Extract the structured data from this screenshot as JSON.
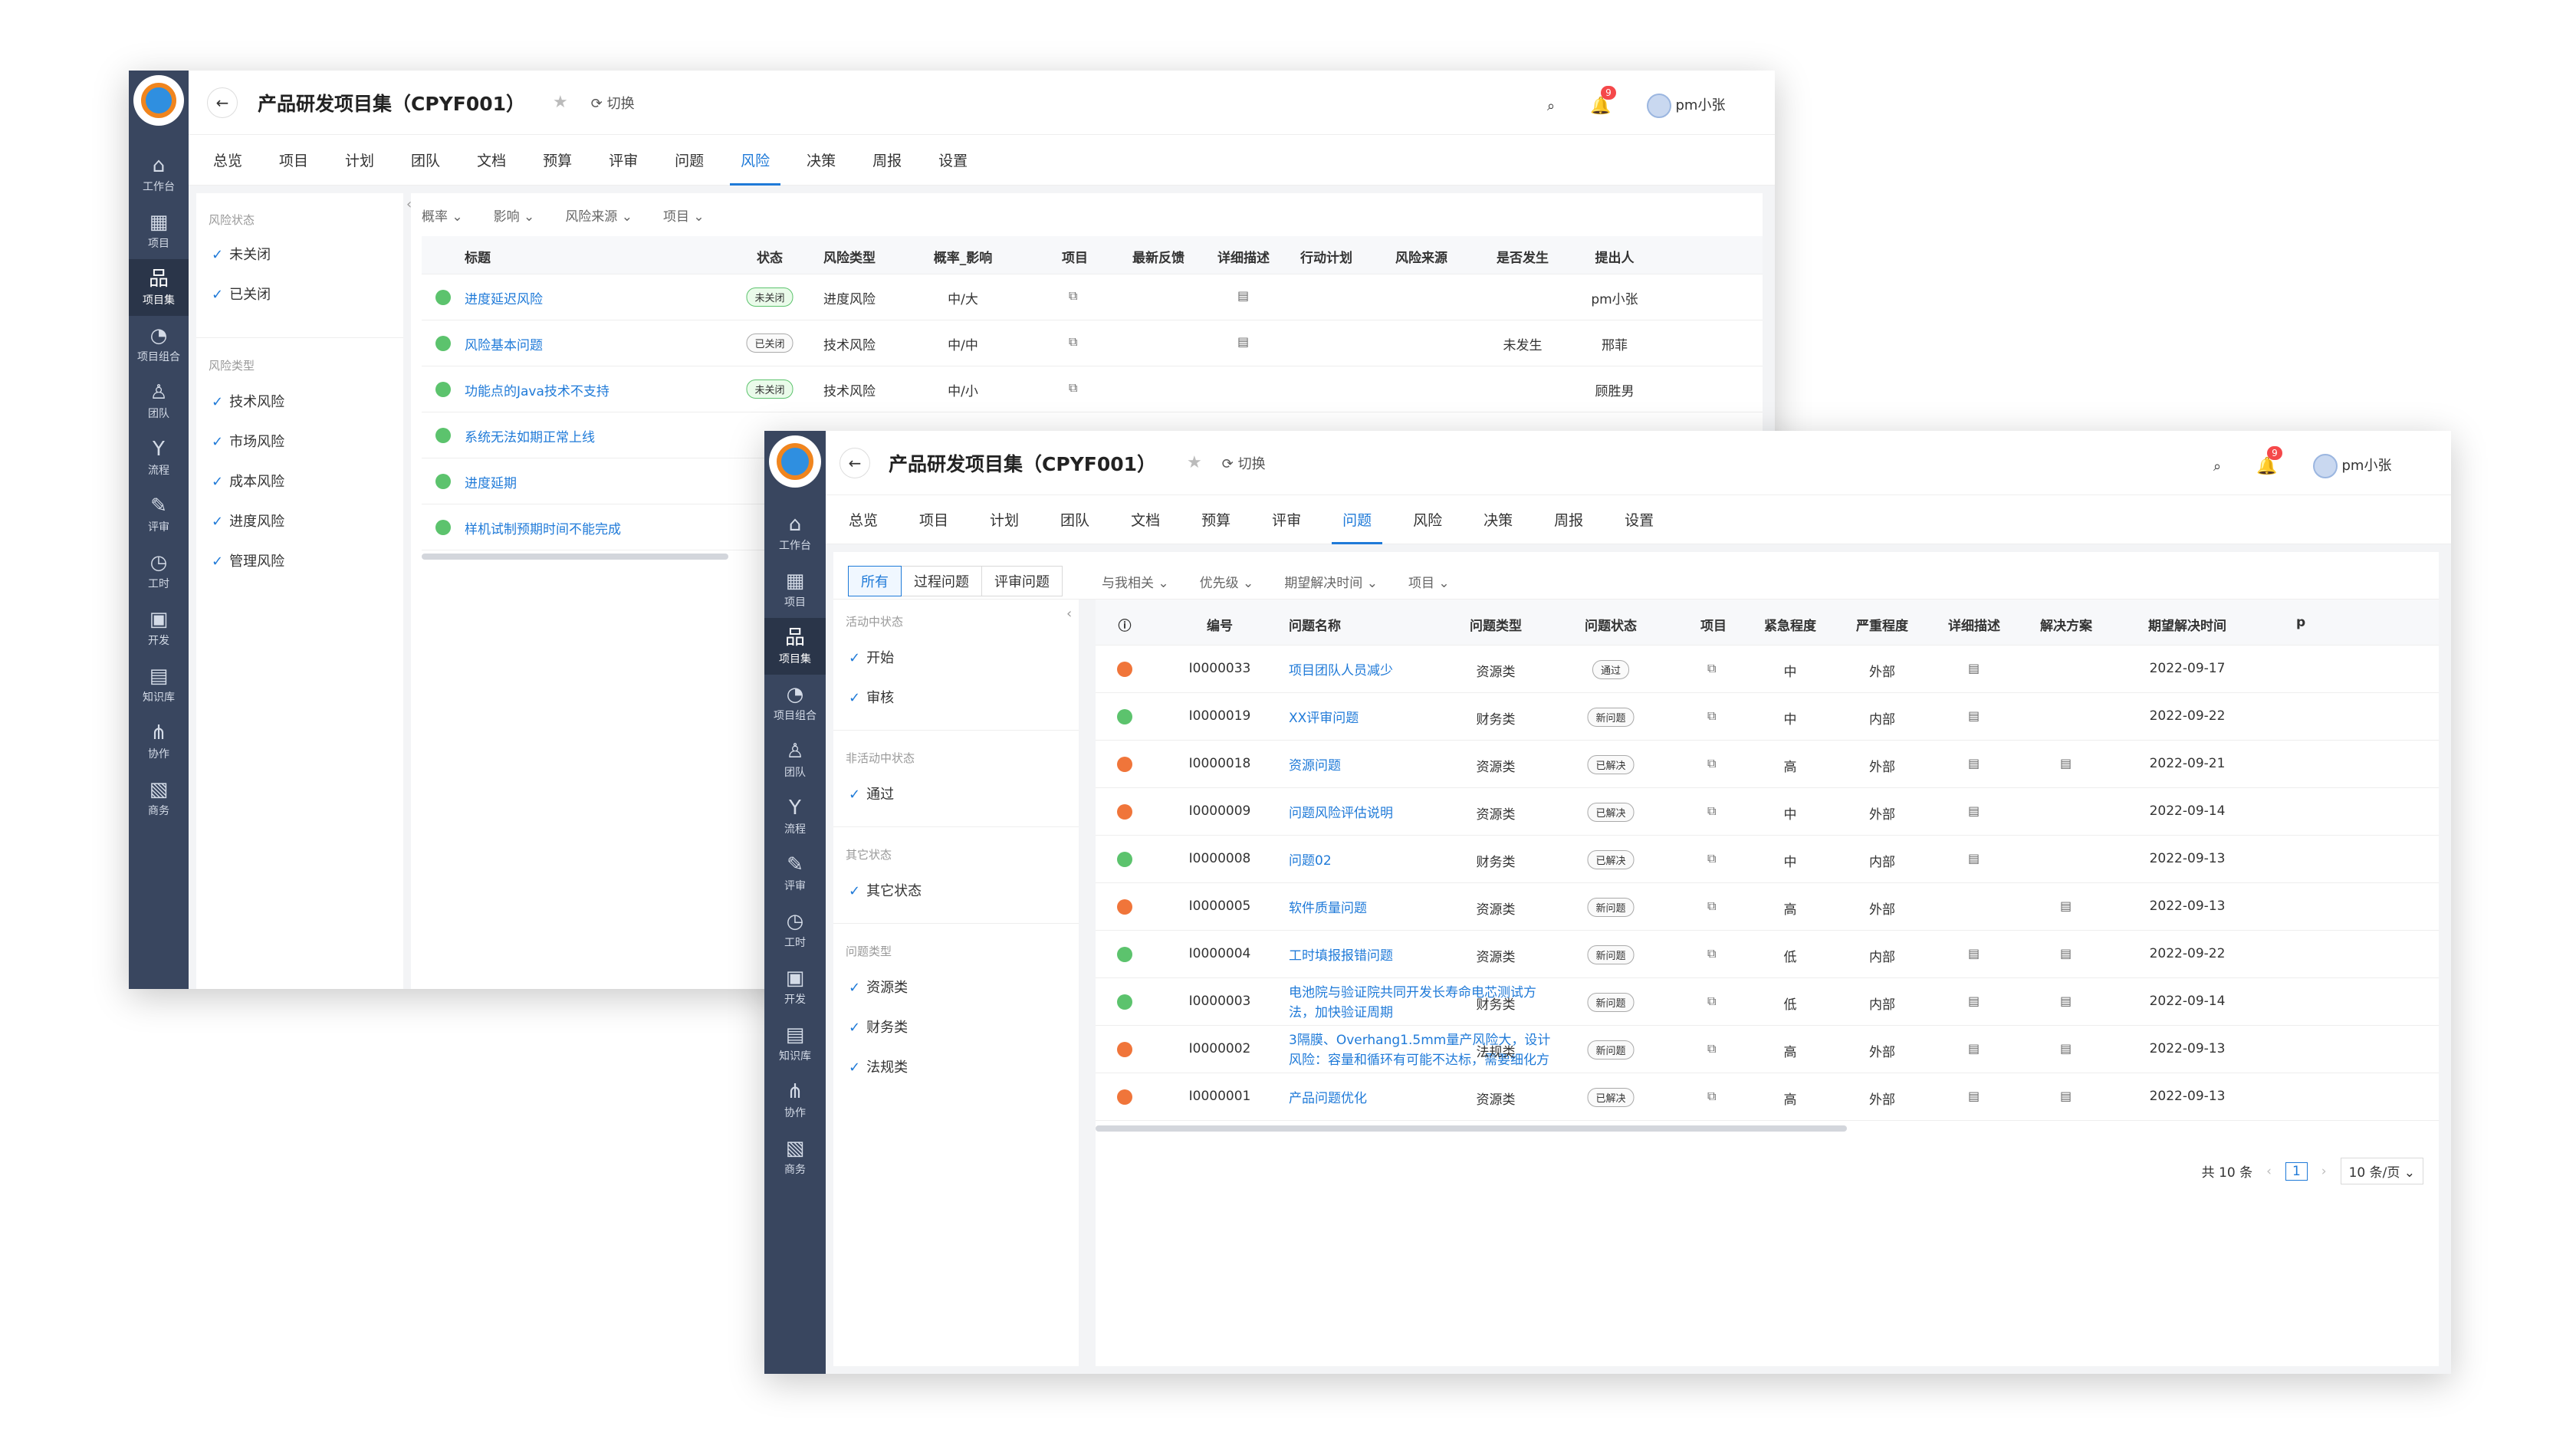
{
  "nav": [
    {
      "icon": "home-icon",
      "glyph": "⌂",
      "label": "工作台"
    },
    {
      "icon": "project-icon",
      "glyph": "▦",
      "label": "项目"
    },
    {
      "icon": "program-icon",
      "glyph": "品",
      "label": "项目集"
    },
    {
      "icon": "portfolio-icon",
      "glyph": "◔",
      "label": "项目组合"
    },
    {
      "icon": "team-icon",
      "glyph": "♙",
      "label": "团队"
    },
    {
      "icon": "flow-icon",
      "glyph": "Y",
      "label": "流程"
    },
    {
      "icon": "review-icon",
      "glyph": "✎",
      "label": "评审"
    },
    {
      "icon": "worktime-icon",
      "glyph": "◷",
      "label": "工时"
    },
    {
      "icon": "dev-icon",
      "glyph": "▣",
      "label": "开发"
    },
    {
      "icon": "knowledge-icon",
      "glyph": "▤",
      "label": "知识库"
    },
    {
      "icon": "collab-icon",
      "glyph": "⋔",
      "label": "协作"
    },
    {
      "icon": "business-icon",
      "glyph": "▧",
      "label": "商务"
    }
  ],
  "header": {
    "back": "←",
    "title": "产品研发项目集（CPYF001）",
    "star": "★",
    "switch_icon": "⟳",
    "switch": "切换",
    "search": "⌕",
    "bell": "🔔",
    "notif": "9",
    "user": "pm小张"
  },
  "tabs": [
    "总览",
    "项目",
    "计划",
    "团队",
    "文档",
    "预算",
    "评审",
    "问题",
    "风险",
    "决策",
    "周报",
    "设置"
  ],
  "risk": {
    "filters": [
      "概率 ⌄",
      "影响 ⌄",
      "风险来源 ⌄",
      "项目 ⌄"
    ],
    "status_title": "风险状态",
    "status": [
      "未关闭",
      "已关闭"
    ],
    "type_title": "风险类型",
    "types": [
      "技术风险",
      "市场风险",
      "成本风险",
      "进度风险",
      "管理风险"
    ],
    "columns": [
      "标题",
      "状态",
      "风险类型",
      "概率_影响",
      "项目",
      "最新反馈",
      "详细描述",
      "行动计划",
      "风险来源",
      "是否发生",
      "提出人"
    ],
    "rows": [
      {
        "title": "进度延迟风险",
        "status": "未关闭",
        "type": "进度风险",
        "pi": "中/大",
        "desc": "yes",
        "occur": "",
        "by": "pm小张"
      },
      {
        "title": "风险基本问题",
        "status": "已关闭",
        "type": "技术风险",
        "pi": "中/中",
        "desc": "yes",
        "occur": "未发生",
        "by": "邢菲"
      },
      {
        "title": "功能点的Java技术不支持",
        "status": "未关闭",
        "type": "技术风险",
        "pi": "中/小",
        "desc": "",
        "occur": "",
        "by": "顾胜男"
      },
      {
        "title": "系统无法如期正常上线"
      },
      {
        "title": "进度延期"
      },
      {
        "title": "样机试制预期时间不能完成"
      }
    ]
  },
  "issue": {
    "seg": [
      "所有",
      "过程问题",
      "评审问题"
    ],
    "filters": [
      "与我相关 ⌄",
      "优先级 ⌄",
      "期望解决时间 ⌄",
      "项目 ⌄"
    ],
    "groups": [
      {
        "title": "活动中状态",
        "items": [
          "开始",
          "审核"
        ]
      },
      {
        "title": "非活动中状态",
        "items": [
          "通过"
        ]
      },
      {
        "title": "其它状态",
        "items": [
          "其它状态"
        ]
      },
      {
        "title": "问题类型",
        "items": [
          "资源类",
          "财务类",
          "法规类"
        ]
      }
    ],
    "columns": [
      "ⓘ",
      "编号",
      "问题名称",
      "问题类型",
      "问题状态",
      "项目",
      "紧急程度",
      "严重程度",
      "详细描述",
      "解决方案",
      "期望解决时间"
    ],
    "rows": [
      {
        "color": "#f0753a",
        "id": "I0000033",
        "name": [
          "项目团队人员减少"
        ],
        "type": "资源类",
        "status": "通过",
        "urg": "中",
        "sev": "外部",
        "desc": "yes",
        "sol": "",
        "date": "2022-09-17"
      },
      {
        "color": "#5cc36d",
        "id": "I0000019",
        "name": [
          "XX评审问题"
        ],
        "type": "财务类",
        "status": "新问题",
        "urg": "中",
        "sev": "内部",
        "desc": "yes",
        "sol": "",
        "date": "2022-09-22"
      },
      {
        "color": "#f0753a",
        "id": "I0000018",
        "name": [
          "资源问题"
        ],
        "type": "资源类",
        "status": "已解决",
        "urg": "高",
        "sev": "外部",
        "desc": "yes",
        "sol": "yes",
        "date": "2022-09-21"
      },
      {
        "color": "#f0753a",
        "id": "I0000009",
        "name": [
          "问题风险评估说明"
        ],
        "type": "资源类",
        "status": "已解决",
        "urg": "中",
        "sev": "外部",
        "desc": "yes",
        "sol": "",
        "date": "2022-09-14"
      },
      {
        "color": "#5cc36d",
        "id": "I0000008",
        "name": [
          "问题02"
        ],
        "type": "财务类",
        "status": "已解决",
        "urg": "中",
        "sev": "内部",
        "desc": "yes",
        "sol": "",
        "date": "2022-09-13"
      },
      {
        "color": "#f0753a",
        "id": "I0000005",
        "name": [
          "软件质量问题"
        ],
        "type": "资源类",
        "status": "新问题",
        "urg": "高",
        "sev": "外部",
        "desc": "",
        "sol": "yes",
        "date": "2022-09-13"
      },
      {
        "color": "#5cc36d",
        "id": "I0000004",
        "name": [
          "工时填报报错问题"
        ],
        "type": "资源类",
        "status": "新问题",
        "urg": "低",
        "sev": "内部",
        "desc": "yes",
        "sol": "yes",
        "date": "2022-09-22"
      },
      {
        "color": "#5cc36d",
        "id": "I0000003",
        "name": [
          "电池院与验证院共同开发长寿命电芯测试方",
          "法，加快验证周期"
        ],
        "type": "财务类",
        "status": "新问题",
        "urg": "低",
        "sev": "内部",
        "desc": "yes",
        "sol": "yes",
        "date": "2022-09-14"
      },
      {
        "color": "#f0753a",
        "id": "I0000002",
        "name": [
          "3隔膜、Overhang1.5mm量产风险大，设计",
          "风险：容量和循环有可能不达标，需要细化方"
        ],
        "type": "法规类",
        "status": "新问题",
        "urg": "高",
        "sev": "外部",
        "desc": "yes",
        "sol": "yes",
        "date": "2022-09-13"
      },
      {
        "color": "#f0753a",
        "id": "I0000001",
        "name": [
          "产品问题优化"
        ],
        "type": "资源类",
        "status": "已解决",
        "urg": "高",
        "sev": "外部",
        "desc": "yes",
        "sol": "yes",
        "date": "2022-09-13"
      }
    ],
    "extra_col": [
      "p"
    ],
    "pager": {
      "total": "共 10 条",
      "prev": "‹",
      "page": "1",
      "next": "›",
      "size": "10 条/页 ⌄"
    }
  },
  "colors": {
    "sidebar": "#39465f",
    "accent": "#1f7ad8",
    "high": "#f0753a",
    "low": "#5cc36d",
    "badge": "#f5484a"
  }
}
